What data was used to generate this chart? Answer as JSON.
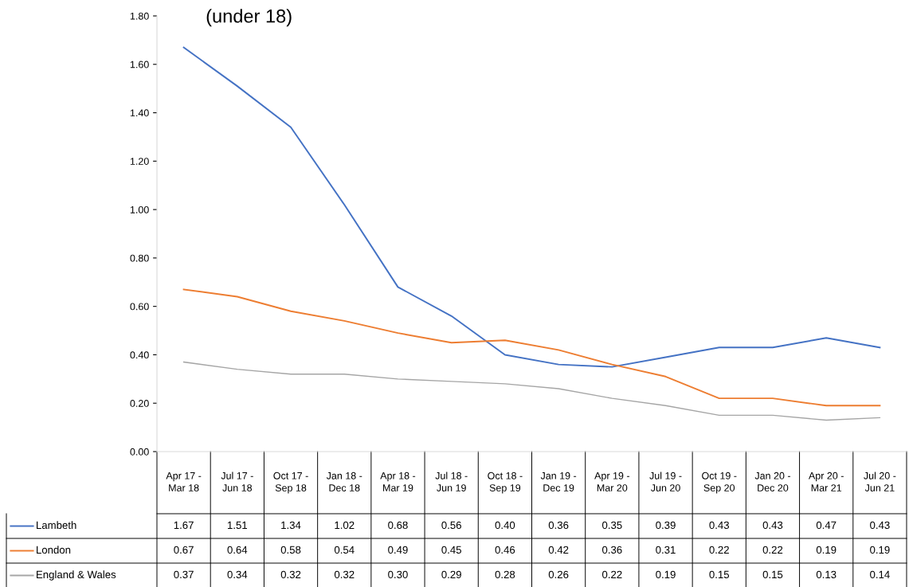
{
  "chart_data": {
    "type": "line",
    "title": "(under 18)",
    "categories": [
      "Apr 17 - Mar 18",
      "Jul 17 - Jun 18",
      "Oct 17 - Sep 18",
      "Jan 18 - Dec 18",
      "Apr 18 - Mar 19",
      "Jul 18 - Jun 19",
      "Oct 18 - Sep 19",
      "Jan 19 - Dec 19",
      "Apr 19 - Mar 20",
      "Jul 19 - Jun 20",
      "Oct 19 - Sep 20",
      "Jan 20 - Dec 20",
      "Apr 20 - Mar 21",
      "Jul 20 - Jun 21"
    ],
    "series": [
      {
        "name": "Lambeth",
        "color": "#4472c4",
        "values": [
          1.67,
          1.51,
          1.34,
          1.02,
          0.68,
          0.56,
          0.4,
          0.36,
          0.35,
          0.39,
          0.43,
          0.43,
          0.47,
          0.43
        ],
        "value_labels": [
          "1.67",
          "1.51",
          "1.34",
          "1.02",
          "0.68",
          "0.56",
          "0.40",
          "0.36",
          "0.35",
          "0.39",
          "0.43",
          "0.43",
          "0.47",
          "0.43"
        ]
      },
      {
        "name": "London",
        "color": "#ed7d31",
        "values": [
          0.67,
          0.64,
          0.58,
          0.54,
          0.49,
          0.45,
          0.46,
          0.42,
          0.36,
          0.31,
          0.22,
          0.22,
          0.19,
          0.19
        ],
        "value_labels": [
          "0.67",
          "0.64",
          "0.58",
          "0.54",
          "0.49",
          "0.45",
          "0.46",
          "0.42",
          "0.36",
          "0.31",
          "0.22",
          "0.22",
          "0.19",
          "0.19"
        ]
      },
      {
        "name": "England & Wales",
        "color": "#a5a5a5",
        "values": [
          0.37,
          0.34,
          0.32,
          0.32,
          0.3,
          0.29,
          0.28,
          0.26,
          0.22,
          0.19,
          0.15,
          0.15,
          0.13,
          0.14
        ],
        "value_labels": [
          "0.37",
          "0.34",
          "0.32",
          "0.32",
          "0.30",
          "0.29",
          "0.28",
          "0.26",
          "0.22",
          "0.19",
          "0.15",
          "0.15",
          "0.13",
          "0.14"
        ]
      }
    ],
    "ylim": [
      0,
      1.8
    ],
    "yticks": [
      {
        "value": 0,
        "label": "0.00"
      },
      {
        "value": 0.2,
        "label": "0.20"
      },
      {
        "value": 0.4,
        "label": "0.40"
      },
      {
        "value": 0.6,
        "label": "0.60"
      },
      {
        "value": 0.8,
        "label": "0.80"
      },
      {
        "value": 1.0,
        "label": "1.00"
      },
      {
        "value": 1.2,
        "label": "1.20"
      },
      {
        "value": 1.4,
        "label": "1.40"
      },
      {
        "value": 1.6,
        "label": "1.60"
      },
      {
        "value": 1.8,
        "label": "1.80"
      }
    ],
    "grid": false,
    "legend": "bottom",
    "marker": "none",
    "line_style": "solid"
  }
}
